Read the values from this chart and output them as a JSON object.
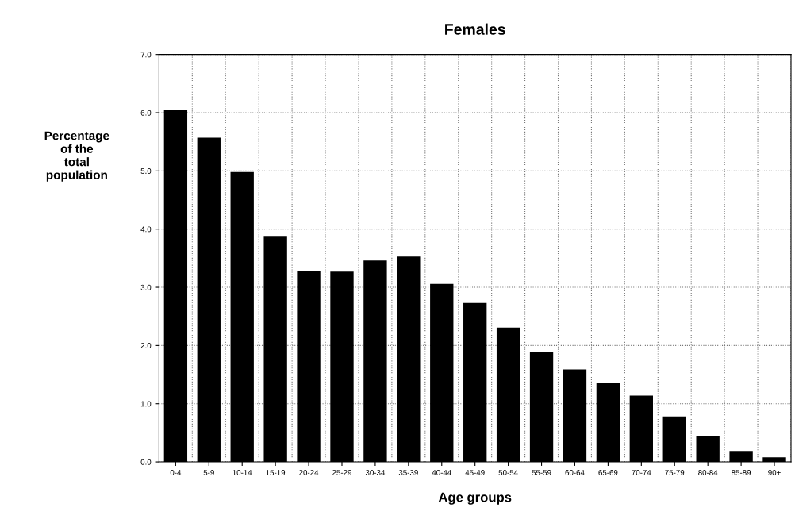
{
  "chart_data": {
    "type": "bar",
    "title": "Females",
    "xlabel": "Age groups",
    "ylabel": "Percentage\nof the\ntotal\npopulation",
    "categories": [
      "0-4",
      "5-9",
      "10-14",
      "15-19",
      "20-24",
      "25-29",
      "30-34",
      "35-39",
      "40-44",
      "45-49",
      "50-54",
      "55-59",
      "60-64",
      "65-69",
      "70-74",
      "75-79",
      "80-84",
      "85-89",
      "90+"
    ],
    "values": [
      6.05,
      5.57,
      4.98,
      3.87,
      3.28,
      3.27,
      3.46,
      3.53,
      3.06,
      2.73,
      2.31,
      1.89,
      1.59,
      1.36,
      1.14,
      0.78,
      0.44,
      0.19,
      0.08
    ],
    "color": "#000000",
    "ylim": [
      0,
      7
    ],
    "yticks": [
      {
        "value": 0,
        "label": "0.0"
      },
      {
        "value": 1,
        "label": "1.0"
      },
      {
        "value": 2,
        "label": "2.0"
      },
      {
        "value": 3,
        "label": "3.0"
      },
      {
        "value": 4,
        "label": "4.0"
      },
      {
        "value": 5,
        "label": "5.0"
      },
      {
        "value": 6,
        "label": "6.0"
      },
      {
        "value": 7,
        "label": "7.0"
      }
    ],
    "grid": true
  }
}
